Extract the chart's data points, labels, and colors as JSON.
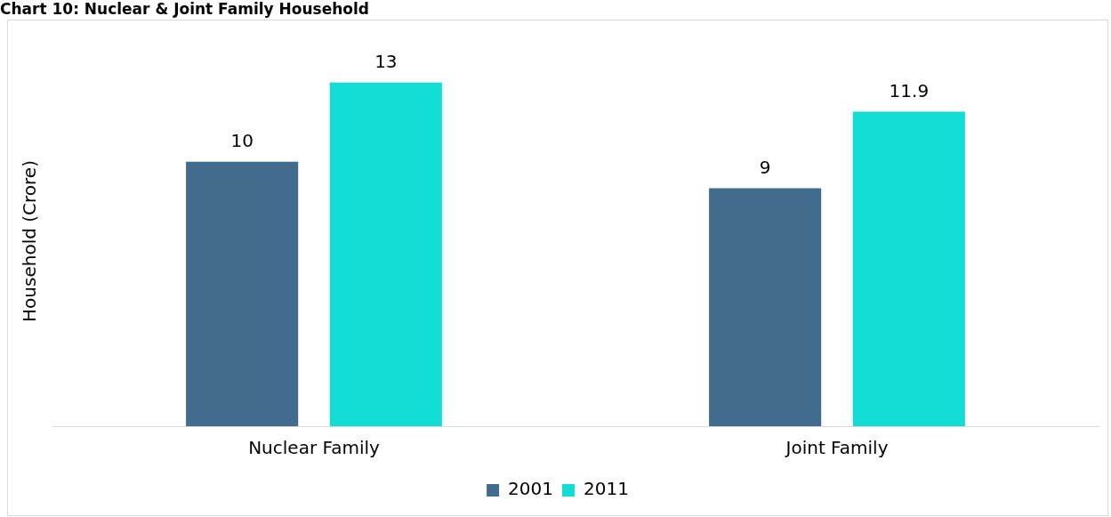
{
  "chart_data": {
    "type": "bar",
    "title": "Chart 10: Nuclear & Joint Family Household",
    "ylabel": "Household (Crore)",
    "categories": [
      "Nuclear Family",
      "Joint Family"
    ],
    "series": [
      {
        "name": "2001",
        "color": "#426c8e",
        "values": [
          10,
          9
        ]
      },
      {
        "name": "2011",
        "color": "#12ddd4",
        "values": [
          13,
          11.9
        ]
      }
    ],
    "data_labels": true,
    "legend": "bottom",
    "grid": false
  }
}
